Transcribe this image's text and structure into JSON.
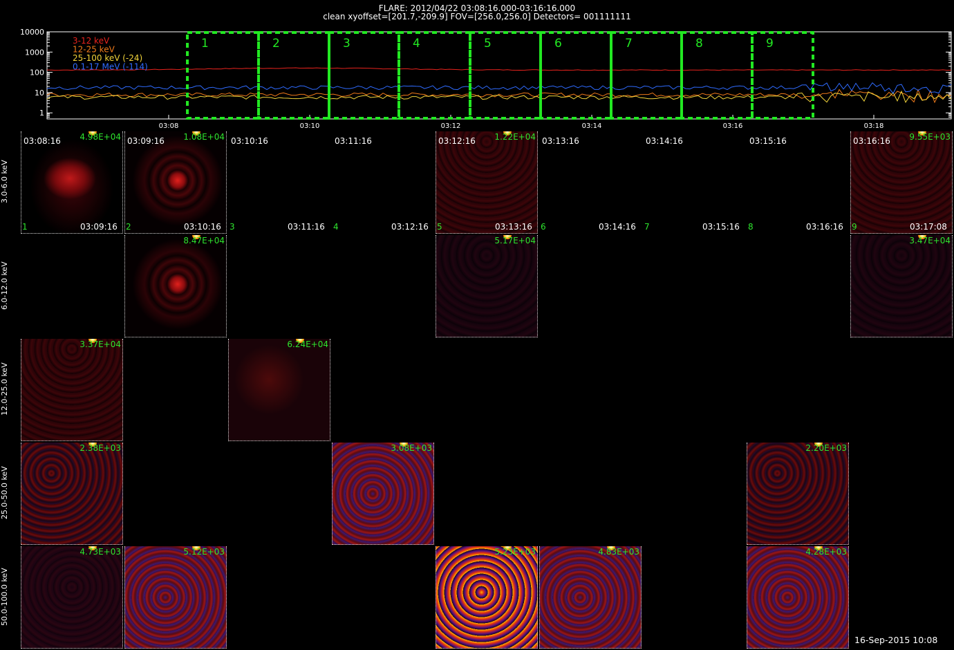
{
  "header": {
    "title": "FLARE: 2012/04/22 03:08:16.000-03:16:16.000",
    "subtitle": "clean    xyoffset=[201.7,-209.9]    FOV=[256.0,256.0]    Detectors= 001111111"
  },
  "chart_data": {
    "type": "line",
    "y_scale": "log",
    "yticks": [
      "10000",
      "1000",
      "100",
      "10",
      "1"
    ],
    "xticks": [
      "03:08",
      "03:10",
      "03:12",
      "03:14",
      "03:16",
      "03:18"
    ],
    "legend": [
      {
        "name": "3-12 keV",
        "color": "#e8231d"
      },
      {
        "name": "12-25 keV",
        "color": "#f07a1a"
      },
      {
        "name": "25-100 keV (-24)",
        "color": "#f2d43a"
      },
      {
        "name": "0.1-17 MeV (-114)",
        "color": "#2f6bff"
      }
    ],
    "interval_labels": [
      "1",
      "2",
      "3",
      "4",
      "5",
      "6",
      "7",
      "8",
      "9"
    ],
    "series": [
      {
        "name": "3-12 keV",
        "color": "#e8231d",
        "level": 130
      },
      {
        "name": "12-25 keV",
        "color": "#f07a1a",
        "level": 8
      },
      {
        "name": "25-100 keV (-24)",
        "color": "#f2d43a",
        "level": 6
      },
      {
        "name": "0.1-17 MeV (-114)",
        "color": "#2f6bff",
        "level": 18
      }
    ],
    "interval_color": "#22e822"
  },
  "energy_bands": [
    "3.0-6.0 keV",
    "6.0-12.0 keV",
    "12.0-25.0 keV",
    "25.0-50.0 keV",
    "50.0-100.0 keV"
  ],
  "row1_labels": {
    "start_times": [
      "03:08:16",
      "03:09:16",
      "03:10:16",
      "03:11:16",
      "03:12:16",
      "03:13:16",
      "03:14:16",
      "03:15:16",
      "03:16:16"
    ],
    "end_times": [
      "03:09:16",
      "03:10:16",
      "03:11:16",
      "03:12:16",
      "03:13:16",
      "03:14:16",
      "03:15:16",
      "03:16:16",
      "03:17:08"
    ],
    "indices": [
      "1",
      "2",
      "3",
      "4",
      "5",
      "6",
      "7",
      "8",
      "9"
    ]
  },
  "tiles": [
    {
      "row": 0,
      "col": 0,
      "peak": "4.98E+04",
      "style": "blob"
    },
    {
      "row": 0,
      "col": 1,
      "peak": "1.08E+04",
      "style": "rings"
    },
    {
      "row": 0,
      "col": 4,
      "peak": "1.22E+04",
      "style": "arcs"
    },
    {
      "row": 0,
      "col": 8,
      "peak": "9.55E+03",
      "style": "arcs"
    },
    {
      "row": 1,
      "col": 1,
      "peak": "8.47E+04",
      "style": "rings"
    },
    {
      "row": 1,
      "col": 4,
      "peak": "5.17E+04",
      "style": "faint"
    },
    {
      "row": 1,
      "col": 8,
      "peak": "3.47E+04",
      "style": "faint"
    },
    {
      "row": 2,
      "col": 0,
      "peak": "3.37E+04",
      "style": "arcs"
    },
    {
      "row": 2,
      "col": 2,
      "peak": "6.24E+04",
      "style": "mottle"
    },
    {
      "row": 3,
      "col": 0,
      "peak": "2.38E+03",
      "style": "noise"
    },
    {
      "row": 3,
      "col": 3,
      "peak": "3.08E+03",
      "style": "noise2"
    },
    {
      "row": 3,
      "col": 7,
      "peak": "2.20E+03",
      "style": "noise"
    },
    {
      "row": 4,
      "col": 0,
      "peak": "4.73E+03",
      "style": "faintnoise"
    },
    {
      "row": 4,
      "col": 1,
      "peak": "5.12E+03",
      "style": "noise2"
    },
    {
      "row": 4,
      "col": 4,
      "peak": "5.23E+03",
      "style": "hotnoise"
    },
    {
      "row": 4,
      "col": 5,
      "peak": "4.83E+03",
      "style": "noise2"
    },
    {
      "row": 4,
      "col": 7,
      "peak": "4.28E+03",
      "style": "noise2"
    }
  ],
  "timestamp": "16-Sep-2015 10:08"
}
